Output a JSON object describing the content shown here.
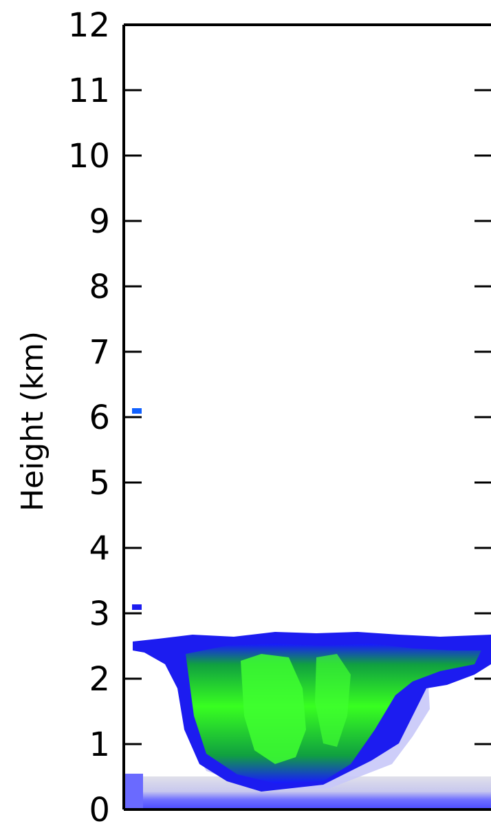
{
  "chart_data": {
    "type": "heatmap",
    "title": "",
    "xlabel": "",
    "ylabel": "Height (km)",
    "ylim": [
      0,
      12
    ],
    "yticks": [
      0,
      1,
      2,
      3,
      4,
      5,
      6,
      7,
      8,
      9,
      10,
      11,
      12
    ],
    "ytick_labels": [
      "0",
      "1",
      "2",
      "3",
      "4",
      "5",
      "6",
      "7",
      "8",
      "9",
      "10",
      "11",
      "12"
    ],
    "grid": false,
    "colors": {
      "weak": "#2020ff",
      "moderate": "#00a050",
      "strong": "#30ff30",
      "surface_clutter": "#d8d8e8",
      "surface_band": "#6060ff"
    },
    "features": [
      {
        "name": "cloud top layer",
        "base_km": 2.3,
        "top_km": 2.65
      },
      {
        "name": "fall streaks",
        "base_km": 0.3,
        "top_km": 2.6
      },
      {
        "name": "surface clutter",
        "base_km": 0.0,
        "top_km": 0.45
      },
      {
        "name": "isolated echo",
        "height_km": 6.1
      },
      {
        "name": "isolated echo",
        "height_km": 3.15
      }
    ]
  }
}
